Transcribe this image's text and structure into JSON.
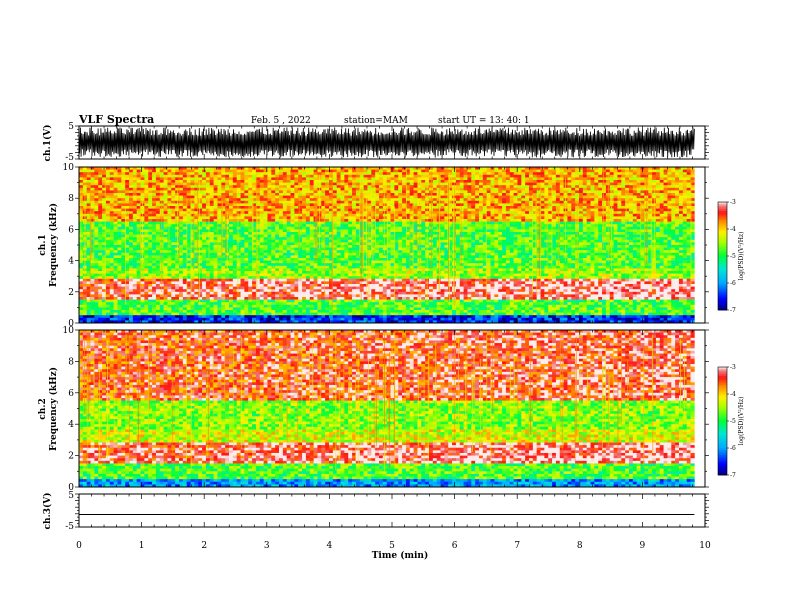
{
  "header": {
    "title": "VLF Spectra",
    "date": "Feb. 5 , 2022",
    "station": "station=MAM",
    "start": "start UT = 13: 40: 1"
  },
  "chart_data": [
    {
      "type": "line",
      "panel": "ch1-waveform",
      "ylabel": "ch.1(V)",
      "yticks": [
        "5",
        "-5"
      ],
      "ylim": [
        -5,
        5
      ],
      "xlim": [
        0,
        10
      ],
      "x_end": 9.83,
      "amplitude": 4.6,
      "description_of_signal": "dense saturated waveform"
    },
    {
      "type": "heatmap",
      "panel": "ch1-spectrogram",
      "ylabel": "ch.1\nFrequency (kHz)",
      "ylabel_line1": "ch.1",
      "ylabel_line2": "Frequency (kHz)",
      "yticks": [
        "0",
        "2",
        "4",
        "6",
        "8",
        "10"
      ],
      "ylim": [
        0,
        10
      ],
      "xlim": [
        0,
        10
      ],
      "x_end": 9.83,
      "colorbar": {
        "label": "log(PSD)(V²/Hz)",
        "ticks": [
          "-3",
          "-4",
          "-5",
          "-6",
          "-7"
        ],
        "range": [
          -7,
          -3
        ]
      },
      "bands": [
        {
          "freq_khz": [
            0,
            0.5
          ],
          "log_psd": -6.5
        },
        {
          "freq_khz": [
            0.5,
            1.5
          ],
          "log_psd": -4.8
        },
        {
          "freq_khz": [
            1.5,
            2.8
          ],
          "log_psd": -3.3
        },
        {
          "freq_khz": [
            2.8,
            3.5
          ],
          "log_psd": -4.5
        },
        {
          "freq_khz": [
            3.5,
            6.5
          ],
          "log_psd": -4.8
        },
        {
          "freq_khz": [
            6.5,
            10
          ],
          "log_psd": -3.9
        }
      ]
    },
    {
      "type": "heatmap",
      "panel": "ch2-spectrogram",
      "ylabel": "ch.2\nFrequency (kHz)",
      "ylabel_line1": "ch.2",
      "ylabel_line2": "Frequency (kHz)",
      "yticks": [
        "0",
        "2",
        "4",
        "6",
        "8",
        "10"
      ],
      "ylim": [
        0,
        10
      ],
      "xlim": [
        0,
        10
      ],
      "x_end": 9.83,
      "colorbar": {
        "label": "log(PSD)(V²/Hz)",
        "ticks": [
          "-3",
          "-4",
          "-5",
          "-6",
          "-7"
        ],
        "range": [
          -7,
          -3
        ]
      },
      "bands": [
        {
          "freq_khz": [
            0,
            0.5
          ],
          "log_psd": -6.0
        },
        {
          "freq_khz": [
            0.5,
            1.5
          ],
          "log_psd": -4.8
        },
        {
          "freq_khz": [
            1.5,
            2.9
          ],
          "log_psd": -3.3
        },
        {
          "freq_khz": [
            2.9,
            3.6
          ],
          "log_psd": -4.3
        },
        {
          "freq_khz": [
            3.6,
            5.5
          ],
          "log_psd": -4.6
        },
        {
          "freq_khz": [
            5.5,
            10
          ],
          "log_psd": -3.5
        }
      ]
    },
    {
      "type": "line",
      "panel": "ch3-waveform",
      "ylabel": "ch.3(V)",
      "yticks": [
        "5",
        "-5"
      ],
      "ylim": [
        -5,
        5
      ],
      "xlim": [
        0,
        10
      ],
      "x_end": 9.83,
      "values_constant": -1.2
    }
  ],
  "xaxis": {
    "label": "Time (min)",
    "ticks": [
      "0",
      "1",
      "2",
      "3",
      "4",
      "5",
      "6",
      "7",
      "8",
      "9",
      "10"
    ]
  }
}
